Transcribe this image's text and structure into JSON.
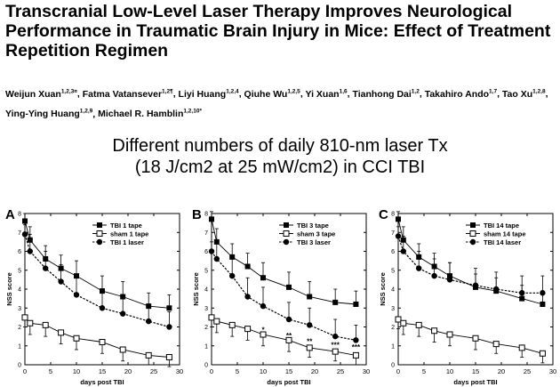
{
  "paper": {
    "title": "Transcranial Low-Level Laser Therapy Improves Neurological Performance in Traumatic Brain Injury in Mice: Effect of Treatment Repetition Regimen",
    "authors": [
      {
        "name": "Weijun Xuan",
        "sup": "1,2,3¤"
      },
      {
        "name": "Fatma Vatansever",
        "sup": "1,2¶"
      },
      {
        "name": "Liyi Huang",
        "sup": "1,2,4"
      },
      {
        "name": "Qiuhe Wu",
        "sup": "1,2,5"
      },
      {
        "name": "Yi Xuan",
        "sup": "1,6"
      },
      {
        "name": "Tianhong Dai",
        "sup": "1,2"
      },
      {
        "name": "Takahiro Ando",
        "sup": "1,7"
      },
      {
        "name": "Tao Xu",
        "sup": "1,2,8"
      },
      {
        "name": "Ying-Ying Huang",
        "sup": "1,2,9"
      },
      {
        "name": "Michael R. Hamblin",
        "sup": "1,2,10*"
      }
    ]
  },
  "subtitle": {
    "line1": "Different numbers of daily 810-nm laser Tx",
    "line2": "(18 J/cm2 at 25 mW/cm2) in CCI TBI"
  },
  "colors": {
    "line": "#000000",
    "sham_marker_fill": "#ffffff"
  },
  "chart_data": [
    {
      "type": "line",
      "panel_label": "A",
      "xlabel": "days post TBI",
      "ylabel": "NSS score",
      "xlim": [
        0,
        30
      ],
      "ylim": [
        0,
        8
      ],
      "xticks": [
        0,
        5,
        10,
        15,
        20,
        25,
        30
      ],
      "yticks": [
        0,
        1,
        2,
        3,
        4,
        5,
        6,
        7,
        8
      ],
      "legend_position": "top-right",
      "x": [
        0,
        1,
        4,
        7,
        10,
        15,
        19,
        24,
        28
      ],
      "series": [
        {
          "name": "TBI 1 tape",
          "marker": "filled-square",
          "dash": "solid",
          "values": [
            7.6,
            6.6,
            5.6,
            5.1,
            4.7,
            3.9,
            3.6,
            3.1,
            3.0
          ],
          "errors": [
            0.4,
            0.7,
            0.7,
            0.7,
            0.8,
            0.8,
            0.8,
            0.7,
            0.7
          ]
        },
        {
          "name": "sham 1 tape",
          "marker": "open-square",
          "dash": "solid",
          "values": [
            2.5,
            2.2,
            2.1,
            1.7,
            1.4,
            1.2,
            0.8,
            0.5,
            0.4
          ],
          "errors": [
            0.5,
            0.6,
            0.6,
            0.6,
            0.6,
            0.6,
            0.6,
            0.5,
            0.5
          ]
        },
        {
          "name": "TBI 1 laser",
          "marker": "filled-circle",
          "dash": "dashed",
          "values": [
            6.9,
            6.0,
            5.1,
            4.4,
            3.7,
            3.0,
            2.7,
            2.3,
            2.0
          ],
          "errors": [
            0.5,
            0.9,
            0.9,
            0.9,
            0.9,
            0.9,
            0.9,
            0.8,
            0.8
          ]
        }
      ],
      "annotations": []
    },
    {
      "type": "line",
      "panel_label": "B",
      "xlabel": "days post TBI",
      "ylabel": "NSS score",
      "xlim": [
        0,
        30
      ],
      "ylim": [
        0,
        8
      ],
      "xticks": [
        0,
        5,
        10,
        15,
        20,
        25,
        30
      ],
      "yticks": [
        0,
        1,
        2,
        3,
        4,
        5,
        6,
        7,
        8
      ],
      "legend_position": "top-right",
      "x": [
        0,
        1,
        4,
        7,
        10,
        15,
        19,
        24,
        28
      ],
      "series": [
        {
          "name": "TBI 3 tape",
          "marker": "filled-square",
          "dash": "solid",
          "values": [
            7.7,
            6.5,
            5.7,
            5.2,
            4.6,
            4.1,
            3.6,
            3.3,
            3.2
          ],
          "errors": [
            0.4,
            0.7,
            0.7,
            0.7,
            0.8,
            0.8,
            0.8,
            0.7,
            0.7
          ]
        },
        {
          "name": "sham 3 tape",
          "marker": "open-square",
          "dash": "solid",
          "values": [
            2.5,
            2.3,
            2.1,
            1.9,
            1.6,
            1.3,
            0.9,
            0.7,
            0.5
          ],
          "errors": [
            0.5,
            0.6,
            0.6,
            0.6,
            0.6,
            0.6,
            0.5,
            0.5,
            0.5
          ]
        },
        {
          "name": "TBI 3 laser",
          "marker": "filled-circle",
          "dash": "dashed",
          "values": [
            6.0,
            5.6,
            4.7,
            3.6,
            3.1,
            2.4,
            2.1,
            1.5,
            1.3
          ],
          "errors": [
            0.5,
            0.9,
            0.9,
            1.0,
            1.0,
            0.9,
            0.9,
            0.9,
            0.8
          ]
        }
      ],
      "annotations": [
        {
          "x": 10,
          "y": 1.9,
          "text": "*"
        },
        {
          "x": 15,
          "y": 1.6,
          "text": "**"
        },
        {
          "x": 19,
          "y": 1.3,
          "text": "**"
        },
        {
          "x": 24,
          "y": 1.1,
          "text": "***"
        },
        {
          "x": 28,
          "y": 1.0,
          "text": "***"
        }
      ]
    },
    {
      "type": "line",
      "panel_label": "C",
      "xlabel": "days post TBI",
      "ylabel": "NSS score",
      "xlim": [
        0,
        30
      ],
      "ylim": [
        0,
        8
      ],
      "xticks": [
        0,
        5,
        10,
        15,
        20,
        25,
        30
      ],
      "yticks": [
        0,
        1,
        2,
        3,
        4,
        5,
        6,
        7,
        8
      ],
      "legend_position": "top-right",
      "x": [
        0,
        1,
        4,
        7,
        10,
        15,
        19,
        24,
        28
      ],
      "series": [
        {
          "name": "TBI 14 tape",
          "marker": "filled-square",
          "dash": "solid",
          "values": [
            7.7,
            6.6,
            5.7,
            5.2,
            4.7,
            4.1,
            3.9,
            3.5,
            3.2
          ],
          "errors": [
            0.4,
            0.7,
            0.7,
            0.7,
            0.7,
            0.7,
            0.7,
            0.7,
            0.7
          ]
        },
        {
          "name": "sham 14 tape",
          "marker": "open-square",
          "dash": "solid",
          "values": [
            2.4,
            2.2,
            2.1,
            1.8,
            1.6,
            1.4,
            1.1,
            0.9,
            0.6
          ],
          "errors": [
            0.5,
            0.6,
            0.6,
            0.6,
            0.6,
            0.6,
            0.5,
            0.5,
            0.5
          ]
        },
        {
          "name": "TBI 14 laser",
          "marker": "filled-circle",
          "dash": "dashed",
          "values": [
            6.8,
            6.0,
            5.1,
            4.7,
            4.5,
            4.2,
            4.0,
            3.8,
            3.8
          ],
          "errors": [
            0.5,
            0.8,
            0.9,
            0.9,
            0.9,
            0.9,
            0.9,
            0.9,
            0.9
          ]
        }
      ],
      "annotations": []
    }
  ]
}
